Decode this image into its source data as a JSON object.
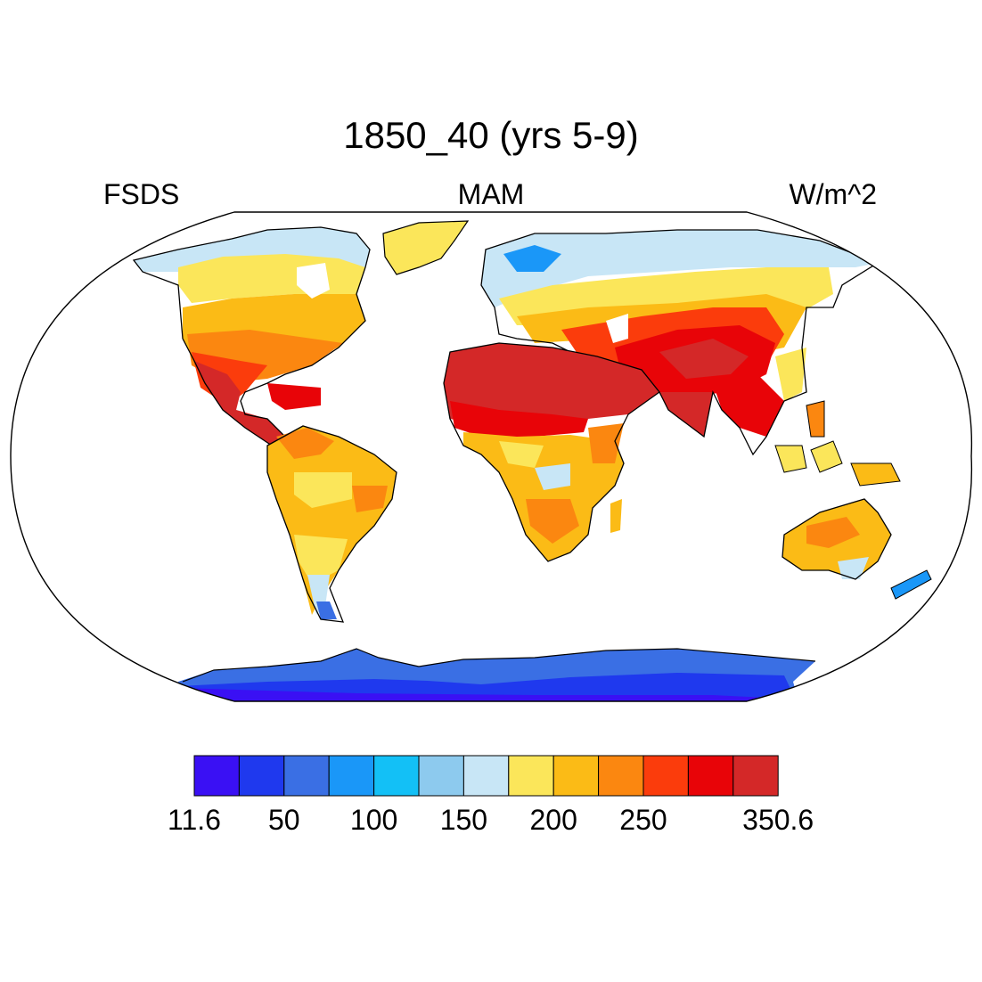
{
  "figure": {
    "title": "1850_40 (yrs 5-9)",
    "left_string": "FSDS",
    "center_string": "MAM",
    "right_string": "W/m^2"
  },
  "colorbar": {
    "colors": [
      "#3a10f4",
      "#1f39ee",
      "#3a6fe4",
      "#1a97f8",
      "#13c0f6",
      "#8dcaee",
      "#c8e6f6",
      "#fbe65a",
      "#fbbb16",
      "#fb8710",
      "#fb3c0c",
      "#e80408",
      "#d42828"
    ],
    "labels": [
      {
        "text": "11.6",
        "index": 0
      },
      {
        "text": "50",
        "index": 2
      },
      {
        "text": "100",
        "index": 4
      },
      {
        "text": "150",
        "index": 6
      },
      {
        "text": "200",
        "index": 8
      },
      {
        "text": "250",
        "index": 10
      },
      {
        "text": "350.6",
        "index": 13
      }
    ]
  },
  "chart_data": {
    "type": "heatmap",
    "title": "1850_40 (yrs 5-9)",
    "variable": "FSDS",
    "season": "MAM",
    "units": "W/m^2",
    "projection": "Robinson",
    "value_range": [
      11.6,
      350.6
    ],
    "regions": [
      {
        "name": "Sahara / Arabia",
        "approx_value": 340
      },
      {
        "name": "India",
        "approx_value": 320
      },
      {
        "name": "Mexico",
        "approx_value": 320
      },
      {
        "name": "Australia",
        "approx_value": 240
      },
      {
        "name": "Amazon",
        "approx_value": 210
      },
      {
        "name": "Northern Eurasia",
        "approx_value": 170
      },
      {
        "name": "Antarctica",
        "approx_value": 30
      }
    ]
  }
}
